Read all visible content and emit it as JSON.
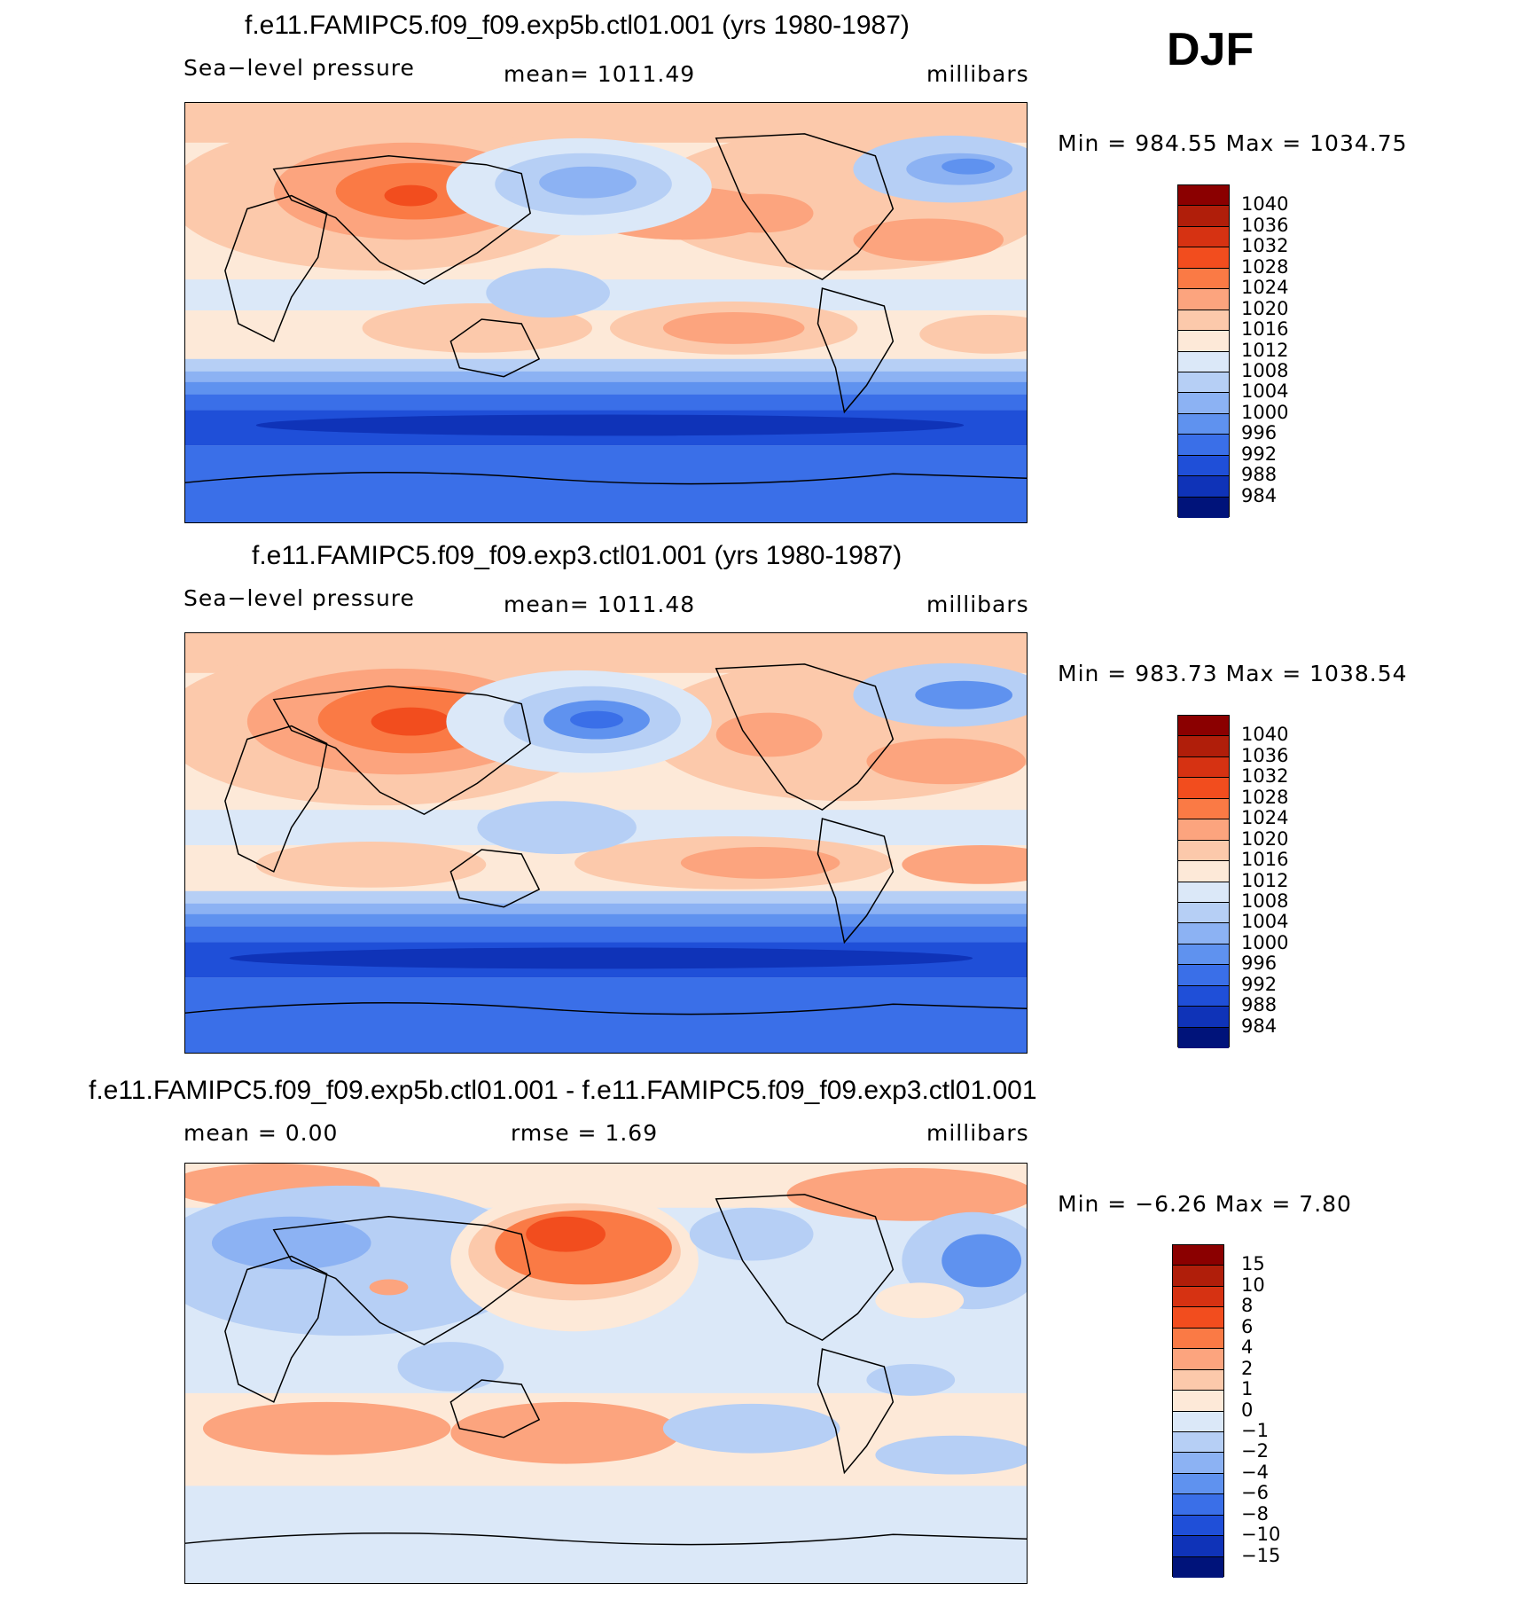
{
  "season": "DJF",
  "panels": [
    {
      "id": "top",
      "title": "f.e11.FAMIPC5.f09_f09.exp5b.ctl01.001 (yrs 1980-1987)",
      "variable": "Sea−level pressure",
      "stat_label": "mean=  1011.49",
      "units": "millibars",
      "min_max": "Min  =  984.55  Max  =  1034.75",
      "colorbar": {
        "ticks": [
          "1040",
          "1036",
          "1032",
          "1028",
          "1024",
          "1020",
          "1016",
          "1012",
          "1008",
          "1004",
          "1000",
          "996",
          "992",
          "988",
          "984"
        ],
        "colors": [
          "#8b0000",
          "#b01e0a",
          "#d63212",
          "#f24d1e",
          "#fa7a45",
          "#fca47e",
          "#fcc9ab",
          "#fde9d8",
          "#dbe8f8",
          "#b6cff5",
          "#8cb2f3",
          "#5f92ef",
          "#3a6fe8",
          "#1f4fd8",
          "#0f33b8",
          "#00137a"
        ]
      }
    },
    {
      "id": "middle",
      "title": "f.e11.FAMIPC5.f09_f09.exp3.ctl01.001 (yrs 1980-1987)",
      "variable": "Sea−level pressure",
      "stat_label": "mean=  1011.48",
      "units": "millibars",
      "min_max": "Min  =  983.73  Max  =  1038.54",
      "colorbar": {
        "ticks": [
          "1040",
          "1036",
          "1032",
          "1028",
          "1024",
          "1020",
          "1016",
          "1012",
          "1008",
          "1004",
          "1000",
          "996",
          "992",
          "988",
          "984"
        ],
        "colors": [
          "#8b0000",
          "#b01e0a",
          "#d63212",
          "#f24d1e",
          "#fa7a45",
          "#fca47e",
          "#fcc9ab",
          "#fde9d8",
          "#dbe8f8",
          "#b6cff5",
          "#8cb2f3",
          "#5f92ef",
          "#3a6fe8",
          "#1f4fd8",
          "#0f33b8",
          "#00137a"
        ]
      }
    },
    {
      "id": "bottom",
      "title": "f.e11.FAMIPC5.f09_f09.exp5b.ctl01.001 - f.e11.FAMIPC5.f09_f09.exp3.ctl01.001",
      "stat_label": "mean  =      0.00",
      "rmse_label": "rmse  =      1.69",
      "units": "millibars",
      "min_max": "Min  =    −6.26  Max  =      7.80",
      "colorbar": {
        "ticks": [
          "15",
          "10",
          "8",
          "6",
          "4",
          "2",
          "1",
          "0",
          "−1",
          "−2",
          "−4",
          "−6",
          "−8",
          "−10",
          "−15"
        ],
        "colors": [
          "#8b0000",
          "#b01e0a",
          "#d63212",
          "#f24d1e",
          "#fa7a45",
          "#fca47e",
          "#fcc9ab",
          "#fde9d8",
          "#dbe8f8",
          "#b6cff5",
          "#8cb2f3",
          "#5f92ef",
          "#3a6fe8",
          "#1f4fd8",
          "#0f33b8",
          "#00137a"
        ]
      }
    }
  ]
}
